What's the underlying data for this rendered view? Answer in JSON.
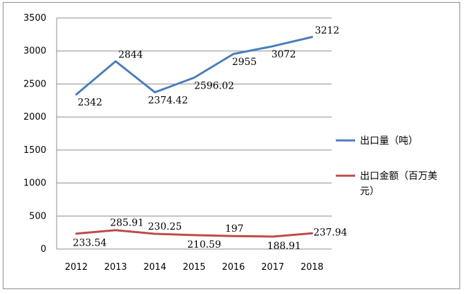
{
  "chart_data": {
    "type": "line",
    "categories": [
      "2012",
      "2013",
      "2014",
      "2015",
      "2016",
      "2017",
      "2018"
    ],
    "ylim": [
      0,
      3500
    ],
    "yticks": [
      0,
      500,
      1000,
      1500,
      2000,
      2500,
      3000,
      3500
    ],
    "ytick_labels": [
      "0",
      "500",
      "1000",
      "1500",
      "2000",
      "2500",
      "3000",
      "3500"
    ],
    "grid": true,
    "legend_position": "right",
    "series": [
      {
        "name": "出口量（吨）",
        "color": "#4a7ebb",
        "values": [
          2342,
          2844,
          2374.42,
          2596.02,
          2955,
          3072,
          3212
        ],
        "labels": [
          "2342",
          "2844",
          "2374.42",
          "2596.02",
          "2955",
          "3072",
          "3212"
        ]
      },
      {
        "name": "出口金额（百万美元）",
        "legend_lines": [
          "出口金额（百万美",
          "元）"
        ],
        "color": "#be4b48",
        "values": [
          233.54,
          285.91,
          230.25,
          210.59,
          197,
          188.91,
          237.94
        ],
        "labels": [
          "233.54",
          "285.91",
          "230.25",
          "210.59",
          "197",
          "188.91",
          "237.94"
        ]
      }
    ]
  }
}
